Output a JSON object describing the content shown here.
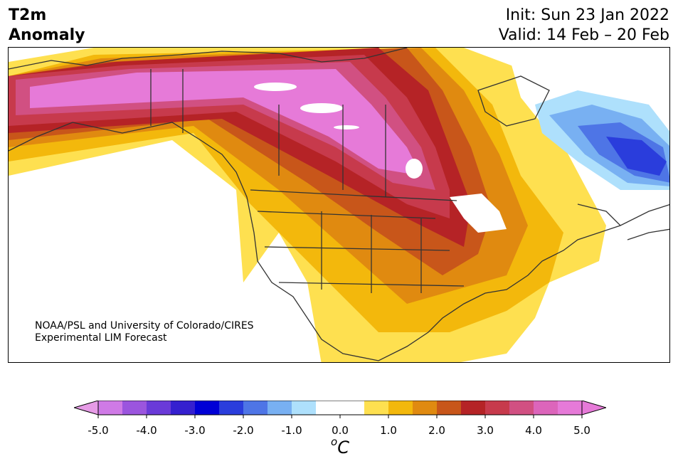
{
  "header": {
    "title_line1": "T2m",
    "title_line2": "Anomaly",
    "init": "Init: Sun 23 Jan 2022",
    "valid": "Valid: 14 Feb – 20 Feb"
  },
  "credit": {
    "line1": "NOAA/PSL and University of Colorado/CIRES",
    "line2": "Experimental LIM Forecast"
  },
  "colorbar": {
    "unit_sup": "o",
    "unit_main": "C",
    "tick_labels": [
      "-5.0",
      "-4.0",
      "-3.0",
      "-2.0",
      "-1.0",
      "0.0",
      "1.0",
      "2.0",
      "3.0",
      "4.0",
      "5.0"
    ],
    "colors": [
      "#cf7ae6",
      "#9b55de",
      "#6a3ad8",
      "#3520cf",
      "#0000d6",
      "#2a3ddc",
      "#4e75e6",
      "#78b0f2",
      "#aee0fc",
      "#ffffff",
      "#ffffff",
      "#fee050",
      "#f3b80c",
      "#e08a10",
      "#c8561a",
      "#b52326",
      "#c73a4c",
      "#d15082",
      "#dc65bb",
      "#e67ad8"
    ],
    "under_color": "#e69be6",
    "over_color": "#e67ad8"
  },
  "palette": {
    "land_outline": "#333333",
    "heat_max": "#e67ad8",
    "cold_max": "#2a3ddc"
  }
}
